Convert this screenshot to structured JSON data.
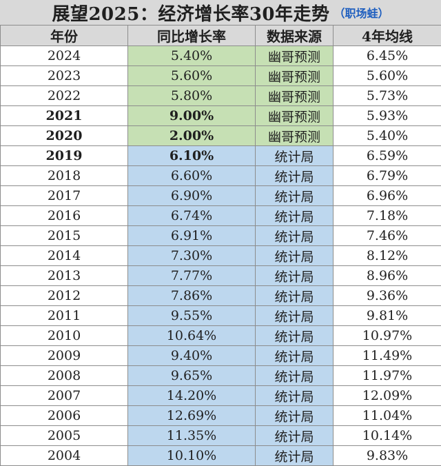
{
  "title": {
    "main": "展望2025：经济增长率30年走势",
    "sub": "（职场蛙）"
  },
  "headers": [
    "年份",
    "同比增长率",
    "数据来源",
    "4年均线"
  ],
  "colors": {
    "header_bg": "#d9d9d9",
    "forecast_bg": "#c6e0b4",
    "stats_bg": "#bdd7ee"
  },
  "rows": [
    {
      "year": "2024",
      "growth": "5.40%",
      "source": "幽哥预测",
      "avg4": "6.45%",
      "bold": false,
      "fill": "green"
    },
    {
      "year": "2023",
      "growth": "5.60%",
      "source": "幽哥预测",
      "avg4": "5.60%",
      "bold": false,
      "fill": "green"
    },
    {
      "year": "2022",
      "growth": "5.80%",
      "source": "幽哥预测",
      "avg4": "5.73%",
      "bold": false,
      "fill": "green"
    },
    {
      "year": "2021",
      "growth": "9.00%",
      "source": "幽哥预测",
      "avg4": "5.93%",
      "bold": true,
      "fill": "green"
    },
    {
      "year": "2020",
      "growth": "2.00%",
      "source": "幽哥预测",
      "avg4": "5.40%",
      "bold": true,
      "fill": "green"
    },
    {
      "year": "2019",
      "growth": "6.10%",
      "source": "统计局",
      "avg4": "6.59%",
      "bold": true,
      "fill": "blue"
    },
    {
      "year": "2018",
      "growth": "6.60%",
      "source": "统计局",
      "avg4": "6.79%",
      "bold": false,
      "fill": "blue"
    },
    {
      "year": "2017",
      "growth": "6.90%",
      "source": "统计局",
      "avg4": "6.96%",
      "bold": false,
      "fill": "blue"
    },
    {
      "year": "2016",
      "growth": "6.74%",
      "source": "统计局",
      "avg4": "7.18%",
      "bold": false,
      "fill": "blue"
    },
    {
      "year": "2015",
      "growth": "6.91%",
      "source": "统计局",
      "avg4": "7.46%",
      "bold": false,
      "fill": "blue"
    },
    {
      "year": "2014",
      "growth": "7.30%",
      "source": "统计局",
      "avg4": "8.12%",
      "bold": false,
      "fill": "blue"
    },
    {
      "year": "2013",
      "growth": "7.77%",
      "source": "统计局",
      "avg4": "8.96%",
      "bold": false,
      "fill": "blue"
    },
    {
      "year": "2012",
      "growth": "7.86%",
      "source": "统计局",
      "avg4": "9.36%",
      "bold": false,
      "fill": "blue"
    },
    {
      "year": "2011",
      "growth": "9.55%",
      "source": "统计局",
      "avg4": "9.81%",
      "bold": false,
      "fill": "blue"
    },
    {
      "year": "2010",
      "growth": "10.64%",
      "source": "统计局",
      "avg4": "10.97%",
      "bold": false,
      "fill": "blue"
    },
    {
      "year": "2009",
      "growth": "9.40%",
      "source": "统计局",
      "avg4": "11.49%",
      "bold": false,
      "fill": "blue"
    },
    {
      "year": "2008",
      "growth": "9.65%",
      "source": "统计局",
      "avg4": "11.97%",
      "bold": false,
      "fill": "blue"
    },
    {
      "year": "2007",
      "growth": "14.20%",
      "source": "统计局",
      "avg4": "12.09%",
      "bold": false,
      "fill": "blue"
    },
    {
      "year": "2006",
      "growth": "12.69%",
      "source": "统计局",
      "avg4": "11.04%",
      "bold": false,
      "fill": "blue"
    },
    {
      "year": "2005",
      "growth": "11.35%",
      "source": "统计局",
      "avg4": "10.14%",
      "bold": false,
      "fill": "blue"
    },
    {
      "year": "2004",
      "growth": "10.10%",
      "source": "统计局",
      "avg4": "9.83%",
      "bold": false,
      "fill": "blue"
    }
  ]
}
